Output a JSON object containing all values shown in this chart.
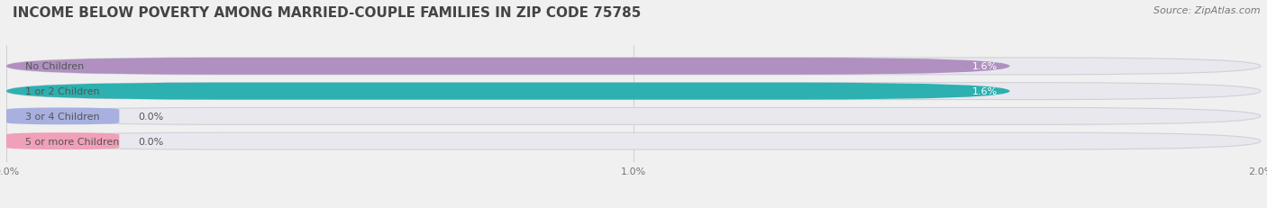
{
  "title": "INCOME BELOW POVERTY AMONG MARRIED-COUPLE FAMILIES IN ZIP CODE 75785",
  "source": "Source: ZipAtlas.com",
  "categories": [
    "No Children",
    "1 or 2 Children",
    "3 or 4 Children",
    "5 or more Children"
  ],
  "values": [
    1.6,
    1.6,
    0.0,
    0.0
  ],
  "bar_colors": [
    "#b090c0",
    "#2db0b0",
    "#a8b0e0",
    "#f0a0b8"
  ],
  "label_color": "#555555",
  "value_label_color_inside": "white",
  "value_label_color_outside": "#555555",
  "value_labels": [
    "1.6%",
    "1.6%",
    "0.0%",
    "0.0%"
  ],
  "xlim": [
    0,
    2.0
  ],
  "xticks": [
    0.0,
    1.0,
    2.0
  ],
  "xticklabels": [
    "0.0%",
    "1.0%",
    "2.0%"
  ],
  "background_color": "#f0f0f0",
  "bar_bg_color": "#e8e8ee",
  "bar_bg_edge_color": "#d0d0d8",
  "title_fontsize": 11,
  "source_fontsize": 8,
  "label_fontsize": 8,
  "value_fontsize": 8,
  "bar_height": 0.68,
  "bar_gap": 0.12,
  "rounding": 0.34
}
